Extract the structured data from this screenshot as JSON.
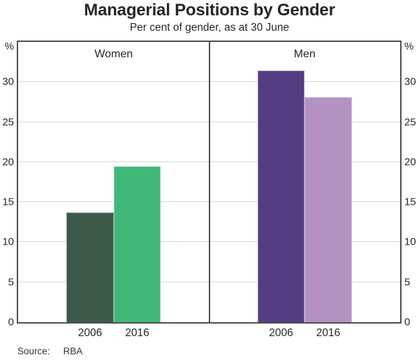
{
  "header": {
    "title": "Managerial Positions by Gender",
    "subtitle": "Per cent of gender, as at 30 June"
  },
  "footer": {
    "source_label": "Source:",
    "source_value": "RBA"
  },
  "chart_data": {
    "type": "bar",
    "title": "Managerial Positions by Gender",
    "subtitle": "Per cent of gender, as at 30 June",
    "unit": "%",
    "ylim": [
      0,
      35
    ],
    "yticks_labeled": [
      0,
      5,
      10,
      15,
      20,
      25,
      30
    ],
    "grid": true,
    "categories": [
      "2006",
      "2016"
    ],
    "panels": [
      {
        "label": "Women",
        "values": [
          13.7,
          19.5
        ],
        "colors": [
          "#3c5a49",
          "#42b878"
        ]
      },
      {
        "label": "Men",
        "values": [
          31.4,
          28.1
        ],
        "colors": [
          "#543d82",
          "#b492c2"
        ]
      }
    ],
    "source": "RBA",
    "legend_position": "none"
  }
}
